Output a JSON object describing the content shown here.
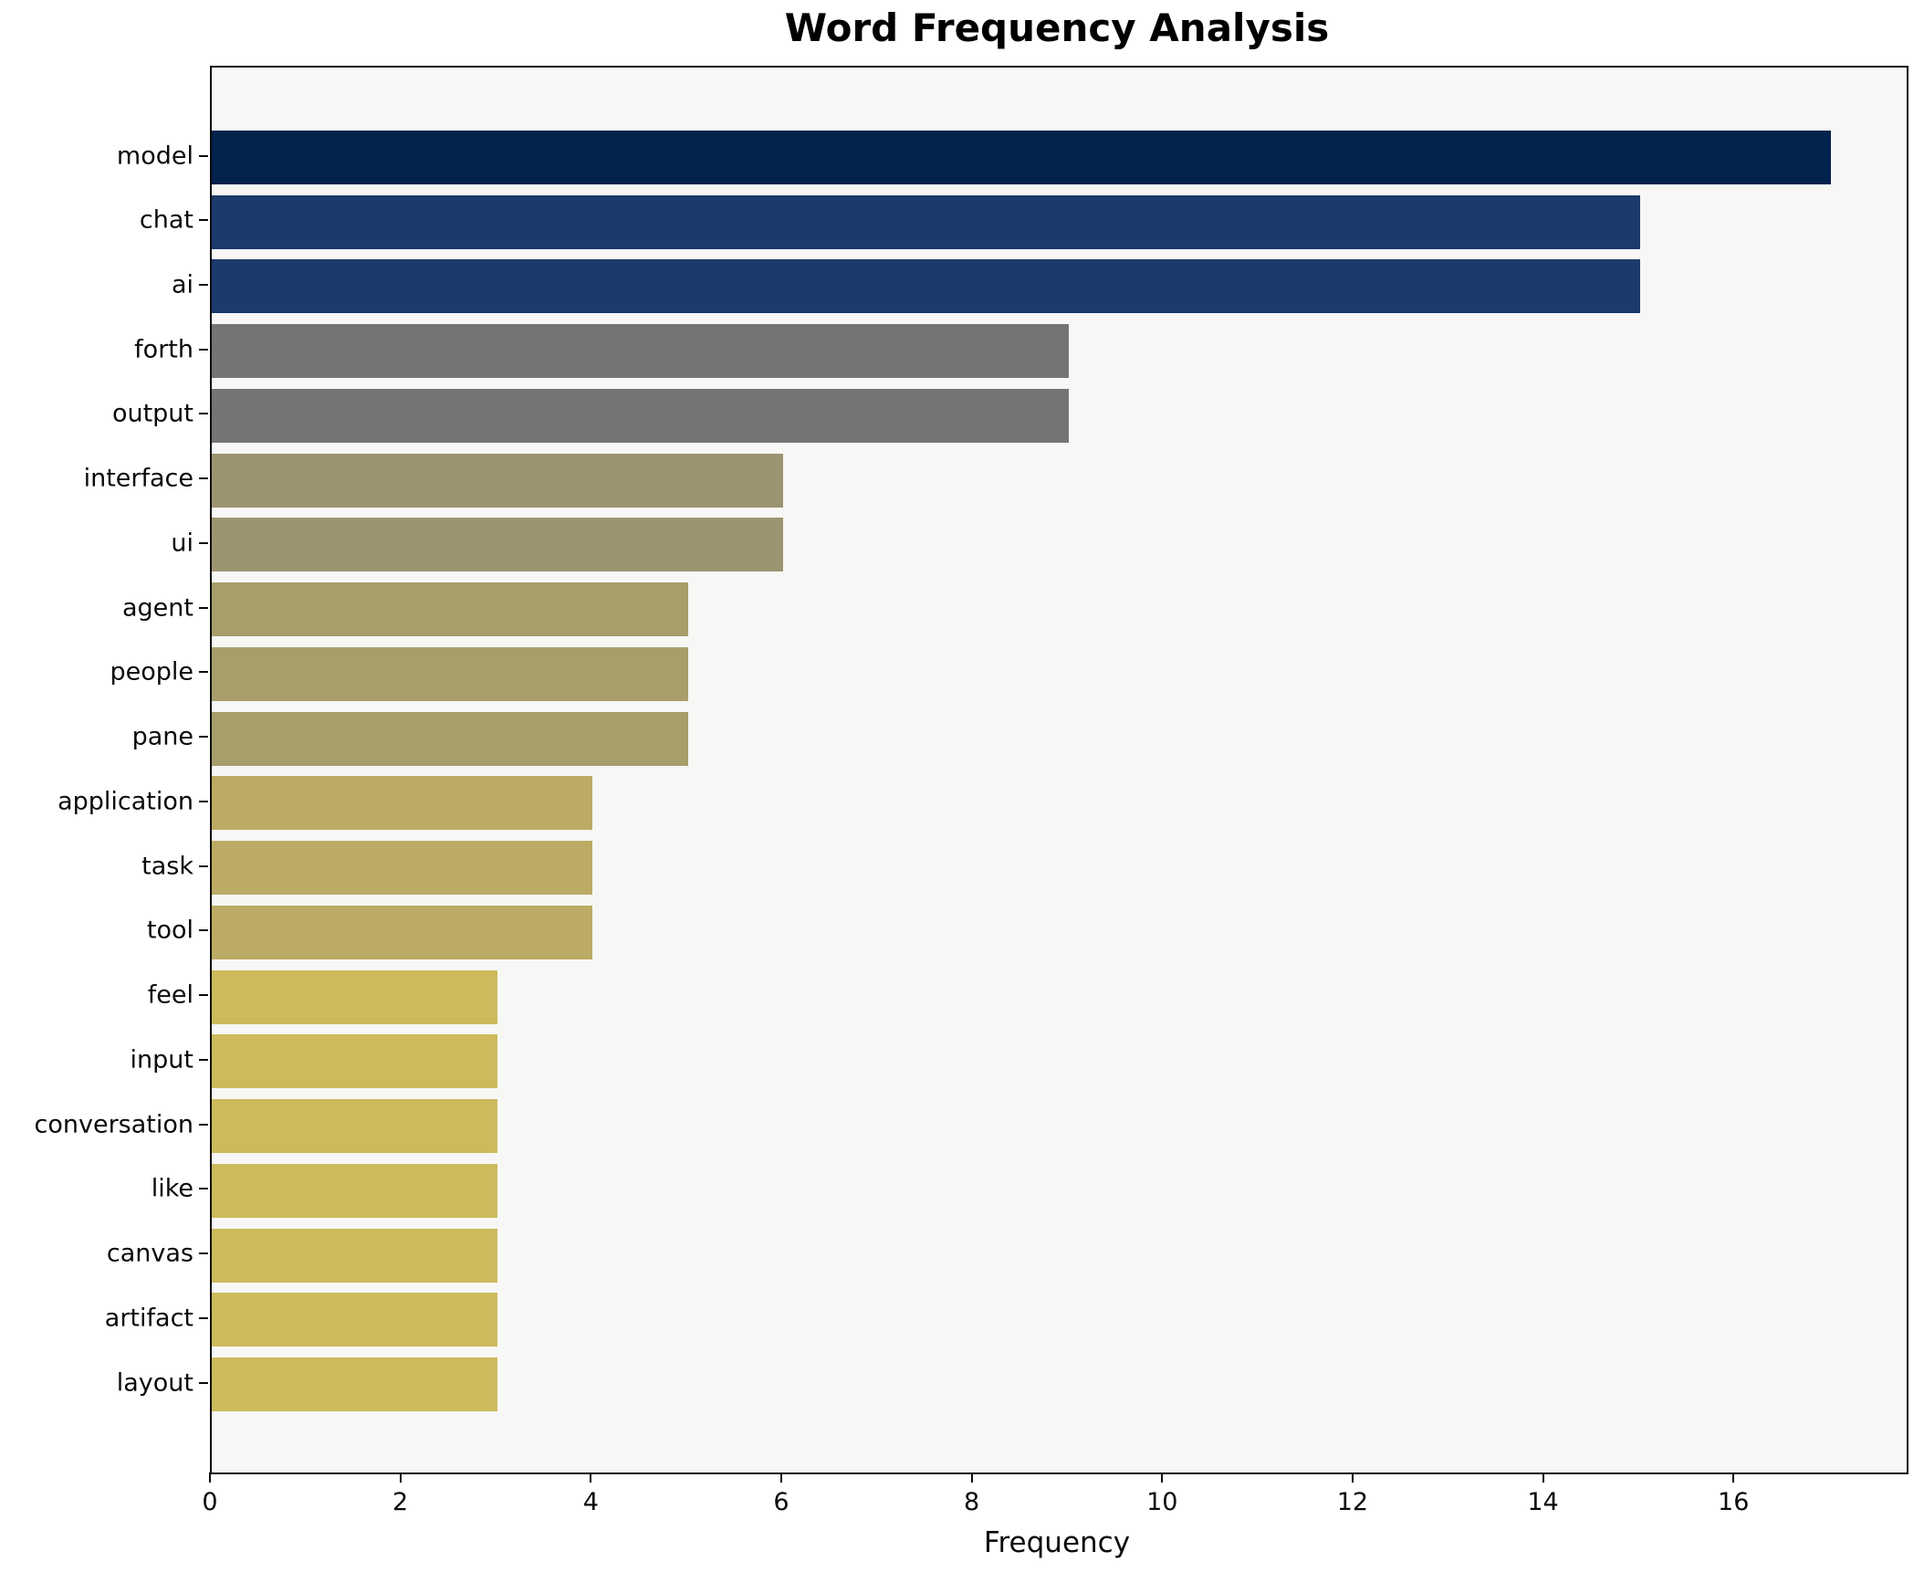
{
  "chart_data": {
    "type": "bar",
    "orientation": "horizontal",
    "title": "Word Frequency Analysis",
    "xlabel": "Frequency",
    "ylabel": "",
    "xlim": [
      0,
      17.8
    ],
    "xticks": [
      0,
      2,
      4,
      6,
      8,
      10,
      12,
      14,
      16
    ],
    "grid": false,
    "legend": "none",
    "categories": [
      "model",
      "chat",
      "ai",
      "forth",
      "output",
      "interface",
      "ui",
      "agent",
      "people",
      "pane",
      "application",
      "task",
      "tool",
      "feel",
      "input",
      "conversation",
      "like",
      "canvas",
      "artifact",
      "layout"
    ],
    "values": [
      17,
      15,
      15,
      9,
      9,
      6,
      6,
      5,
      5,
      5,
      4,
      4,
      4,
      3,
      3,
      3,
      3,
      3,
      3,
      3
    ],
    "bar_colors": [
      "#03224c",
      "#1d3a6c",
      "#1d3a6c",
      "#757474",
      "#757474",
      "#9c9471",
      "#9c9471",
      "#a89e6c",
      "#a89e6c",
      "#a89e6c",
      "#bcab64",
      "#bcab64",
      "#bcab64",
      "#cdba5c",
      "#cdba5c",
      "#cdba5c",
      "#cdba5c",
      "#cdba5c",
      "#cdba5c",
      "#cdba5c"
    ],
    "colors": {
      "plot_background": "#f7f7f6",
      "figure_background": "#ffffff",
      "spine": "#0a0a0a",
      "text": "#000000"
    }
  }
}
